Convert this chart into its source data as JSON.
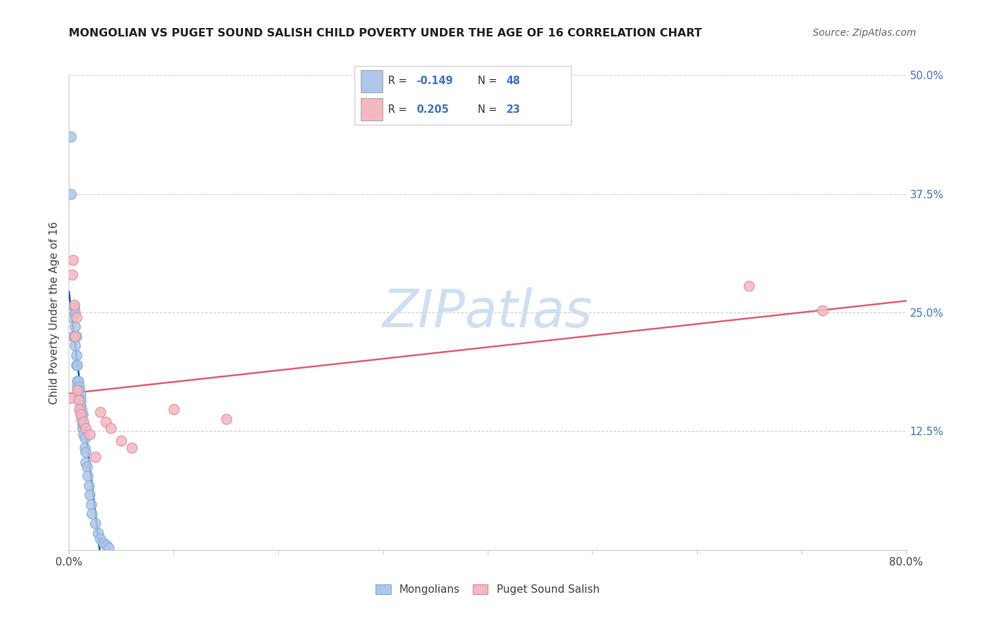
{
  "title": "MONGOLIAN VS PUGET SOUND SALISH CHILD POVERTY UNDER THE AGE OF 16 CORRELATION CHART",
  "source": "Source: ZipAtlas.com",
  "ylabel": "Child Poverty Under the Age of 16",
  "xlim": [
    0.0,
    0.8
  ],
  "ylim": [
    0.0,
    0.5
  ],
  "background_color": "#ffffff",
  "grid_color": "#d0d0d0",
  "mongolian_color": "#aec6e8",
  "mongolian_edge": "#8ab0d8",
  "puget_color": "#f4b8c1",
  "puget_edge": "#e090a0",
  "mongolian_line_color": "#2a5aaa",
  "puget_line_color": "#e06070",
  "mongolian_R": "-0.149",
  "mongolian_N": "48",
  "puget_R": "0.205",
  "puget_N": "23",
  "watermark_color": "#d0dff0",
  "right_tick_color": "#4472c4",
  "mongo_x": [
    0.002,
    0.002,
    0.003,
    0.004,
    0.005,
    0.005,
    0.006,
    0.006,
    0.006,
    0.007,
    0.007,
    0.007,
    0.008,
    0.008,
    0.008,
    0.009,
    0.009,
    0.009,
    0.01,
    0.01,
    0.01,
    0.011,
    0.011,
    0.011,
    0.012,
    0.012,
    0.012,
    0.013,
    0.013,
    0.013,
    0.014,
    0.014,
    0.015,
    0.015,
    0.016,
    0.016,
    0.017,
    0.018,
    0.019,
    0.02,
    0.021,
    0.022,
    0.025,
    0.028,
    0.03,
    0.033,
    0.036,
    0.038
  ],
  "mongo_y": [
    0.435,
    0.375,
    0.245,
    0.225,
    0.255,
    0.225,
    0.25,
    0.235,
    0.215,
    0.225,
    0.205,
    0.195,
    0.195,
    0.178,
    0.172,
    0.178,
    0.168,
    0.162,
    0.172,
    0.168,
    0.16,
    0.163,
    0.158,
    0.152,
    0.148,
    0.142,
    0.138,
    0.143,
    0.132,
    0.128,
    0.133,
    0.122,
    0.118,
    0.108,
    0.103,
    0.092,
    0.088,
    0.078,
    0.068,
    0.058,
    0.048,
    0.038,
    0.028,
    0.018,
    0.012,
    0.007,
    0.005,
    0.002
  ],
  "puget_x": [
    0.002,
    0.003,
    0.004,
    0.005,
    0.006,
    0.007,
    0.008,
    0.009,
    0.01,
    0.011,
    0.014,
    0.016,
    0.02,
    0.025,
    0.03,
    0.035,
    0.04,
    0.05,
    0.06,
    0.1,
    0.15,
    0.65,
    0.72
  ],
  "puget_y": [
    0.16,
    0.29,
    0.305,
    0.258,
    0.225,
    0.245,
    0.168,
    0.158,
    0.148,
    0.143,
    0.135,
    0.128,
    0.122,
    0.098,
    0.145,
    0.135,
    0.128,
    0.115,
    0.108,
    0.148,
    0.138,
    0.278,
    0.252
  ],
  "mongo_line_solid_end": 0.038,
  "puget_line_start": 0.0,
  "puget_line_end": 0.8
}
